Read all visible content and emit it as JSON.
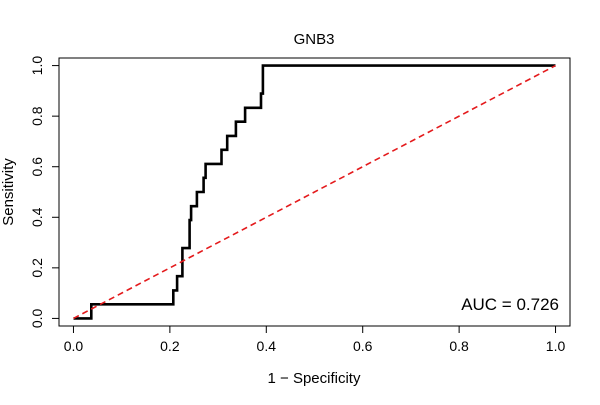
{
  "chart_data": {
    "type": "line",
    "title": "GNB3",
    "xlabel": "1 − Specificity",
    "ylabel": "Sensitivity",
    "xlim": [
      -0.03,
      1.03
    ],
    "ylim": [
      -0.03,
      1.03
    ],
    "x_ticks": [
      0.0,
      0.2,
      0.4,
      0.6,
      0.8,
      1.0
    ],
    "x_tick_labels": [
      "0.0",
      "0.2",
      "0.4",
      "0.6",
      "0.8",
      "1.0"
    ],
    "y_ticks": [
      0.0,
      0.2,
      0.4,
      0.6,
      0.8,
      1.0
    ],
    "y_tick_labels": [
      "0.0",
      "0.2",
      "0.4",
      "0.6",
      "0.8",
      "1.0"
    ],
    "grid": false,
    "annotation": "AUC = 0.726",
    "colors": {
      "roc": "#000000",
      "reference": "#e41a1c"
    },
    "series": [
      {
        "style": "step",
        "x": [
          0.0,
          0.037,
          0.037,
          0.207,
          0.207,
          0.215,
          0.215,
          0.226,
          0.226,
          0.241,
          0.241,
          0.244,
          0.244,
          0.256,
          0.256,
          0.27,
          0.27,
          0.274,
          0.274,
          0.278,
          0.278,
          0.307,
          0.307,
          0.319,
          0.319,
          0.337,
          0.337,
          0.356,
          0.356,
          0.389,
          0.389,
          0.393,
          0.393,
          1.0
        ],
        "y": [
          0.0,
          0.0,
          0.056,
          0.056,
          0.111,
          0.111,
          0.167,
          0.167,
          0.278,
          0.278,
          0.389,
          0.389,
          0.444,
          0.444,
          0.5,
          0.5,
          0.556,
          0.556,
          0.611,
          0.611,
          0.611,
          0.611,
          0.667,
          0.667,
          0.722,
          0.722,
          0.778,
          0.778,
          0.833,
          0.833,
          0.889,
          0.889,
          1.0,
          1.0
        ]
      },
      {
        "style": "dashed",
        "x": [
          0.0,
          1.0
        ],
        "y": [
          0.0,
          1.0
        ]
      }
    ]
  }
}
